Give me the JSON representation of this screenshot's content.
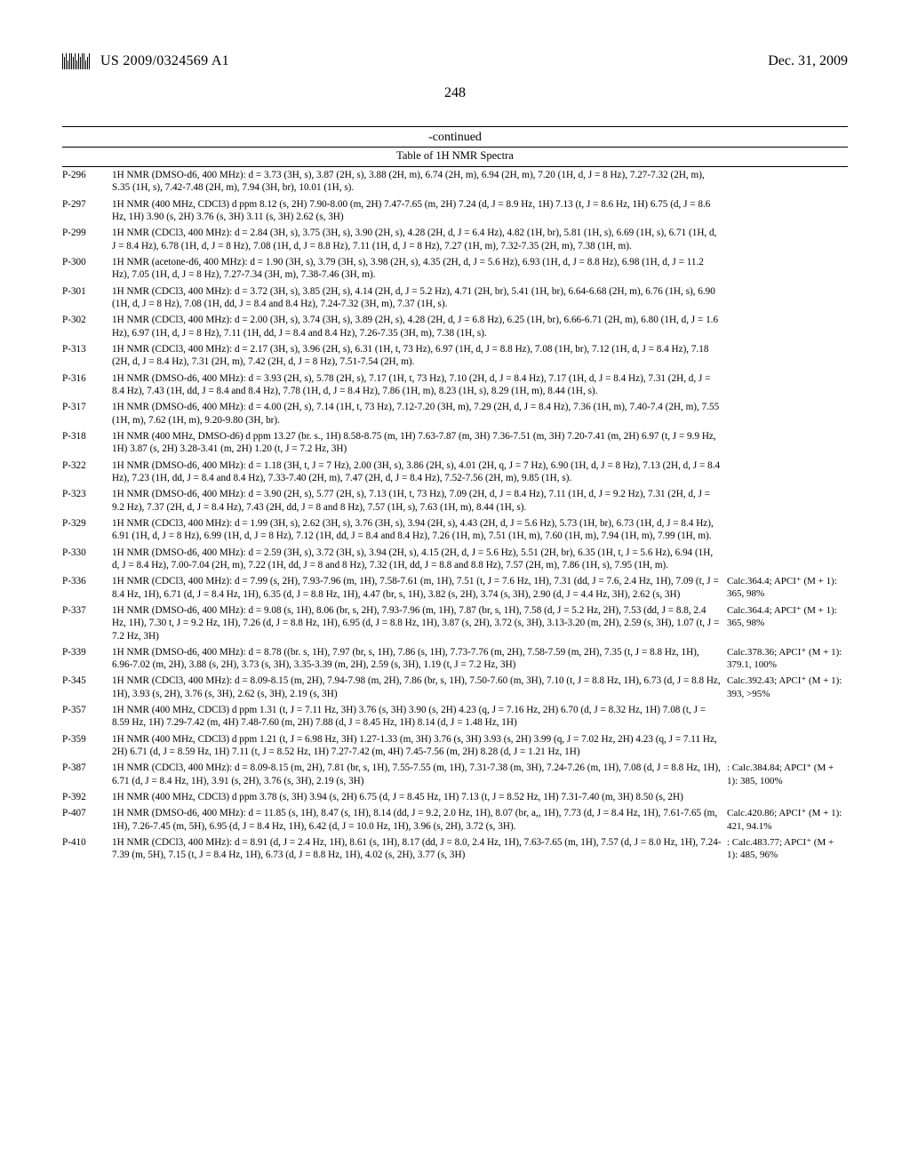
{
  "header": {
    "publication_id": "US 2009/0324569 A1",
    "date": "Dec. 31, 2009",
    "page_number": "248"
  },
  "table": {
    "continued_label": "-continued",
    "title": "Table of 1H NMR Spectra",
    "colors": {
      "text": "#000000",
      "background": "#ffffff",
      "rule": "#000000"
    },
    "font": {
      "family": "Times New Roman",
      "body_size_pt": 11.2,
      "header_size_pt": 16,
      "title_size_pt": 12.5
    },
    "rows": [
      {
        "id": "P-296",
        "nmr": "1H NMR (DMSO-d6, 400 MHz): d = 3.73 (3H, s), 3.87 (2H, s), 3.88 (2H, m), 6.74 (2H, m), 6.94 (2H, m), 7.20 (1H, d, J = 8 Hz), 7.27-7.32 (2H, m), S.35 (1H, s), 7.42-7.48 (2H, m), 7.94 (3H, br), 10.01 (1H, s).",
        "ms": ""
      },
      {
        "id": "P-297",
        "nmr": "1H NMR (400 MHz, CDCl3) d ppm 8.12 (s, 2H) 7.90-8.00 (m, 2H) 7.47-7.65 (m, 2H) 7.24 (d, J = 8.9 Hz, 1H) 7.13 (t, J = 8.6 Hz, 1H) 6.75 (d, J = 8.6 Hz, 1H) 3.90 (s, 2H) 3.76 (s, 3H) 3.11 (s, 3H) 2.62 (s, 3H)",
        "ms": ""
      },
      {
        "id": "P-299",
        "nmr": "1H NMR (CDCl3, 400 MHz): d = 2.84 (3H, s), 3.75 (3H, s), 3.90 (2H, s), 4.28 (2H, d, J = 6.4 Hz), 4.82 (1H, br), 5.81 (1H, s), 6.69 (1H, s), 6.71 (1H, d, J = 8.4 Hz), 6.78 (1H, d, J = 8 Hz), 7.08 (1H, d, J = 8.8 Hz), 7.11 (1H, d, J = 8 Hz), 7.27 (1H, m), 7.32-7.35 (2H, m), 7.38 (1H, m).",
        "ms": ""
      },
      {
        "id": "P-300",
        "nmr": "1H NMR (acetone-d6, 400 MHz): d = 1.90 (3H, s), 3.79 (3H, s), 3.98 (2H, s), 4.35 (2H, d, J = 5.6 Hz), 6.93 (1H, d, J = 8.8 Hz), 6.98 (1H, d, J = 11.2 Hz), 7.05 (1H, d, J = 8 Hz), 7.27-7.34 (3H, m), 7.38-7.46 (3H, m).",
        "ms": ""
      },
      {
        "id": "P-301",
        "nmr": "1H NMR (CDCl3, 400 MHz): d = 3.72 (3H, s), 3.85 (2H, s), 4.14 (2H, d, J = 5.2 Hz), 4.71 (2H, br), 5.41 (1H, br), 6.64-6.68 (2H, m), 6.76 (1H, s), 6.90 (1H, d, J = 8 Hz), 7.08 (1H, dd, J = 8.4 and 8.4 Hz), 7.24-7.32 (3H, m), 7.37 (1H, s).",
        "ms": ""
      },
      {
        "id": "P-302",
        "nmr": "1H NMR (CDCl3, 400 MHz): d = 2.00 (3H, s), 3.74 (3H, s), 3.89 (2H, s), 4.28 (2H, d, J = 6.8 Hz), 6.25 (1H, br), 6.66-6.71 (2H, m), 6.80 (1H, d, J = 1.6 Hz), 6.97 (1H, d, J = 8 Hz), 7.11 (1H, dd, J = 8.4 and 8.4 Hz), 7.26-7.35 (3H, m), 7.38 (1H, s).",
        "ms": ""
      },
      {
        "id": "P-313",
        "nmr": "1H NMR (CDCl3, 400 MHz): d = 2.17 (3H, s), 3.96 (2H, s), 6.31 (1H, t, 73 Hz), 6.97 (1H, d, J = 8.8 Hz), 7.08 (1H, br), 7.12 (1H, d, J = 8.4 Hz), 7.18 (2H, d, J = 8.4 Hz), 7.31 (2H, m), 7.42 (2H, d, J = 8 Hz), 7.51-7.54 (2H, m).",
        "ms": ""
      },
      {
        "id": "P-316",
        "nmr": "1H NMR (DMSO-d6, 400 MHz): d = 3.93 (2H, s), 5.78 (2H, s), 7.17 (1H, t, 73 Hz), 7.10 (2H, d, J = 8.4 Hz), 7.17 (1H, d, J = 8.4 Hz), 7.31 (2H, d, J = 8.4 Hz), 7.43 (1H, dd, J = 8.4 and 8.4 Hz), 7.78 (1H, d, J = 8.4 Hz), 7.86 (1H, m), 8.23 (1H, s), 8.29 (1H, m), 8.44 (1H, s).",
        "ms": ""
      },
      {
        "id": "P-317",
        "nmr": "1H NMR (DMSO-d6, 400 MHz): d = 4.00 (2H, s), 7.14 (1H, t, 73 Hz), 7.12-7.20 (3H, m), 7.29 (2H, d, J = 8.4 Hz), 7.36 (1H, m), 7.40-7.4 (2H, m), 7.55 (1H, m), 7.62 (1H, m), 9.20-9.80 (3H, br).",
        "ms": ""
      },
      {
        "id": "P-318",
        "nmr": "1H NMR (400 MHz, DMSO-d6) d ppm 13.27 (br. s., 1H) 8.58-8.75 (m, 1H) 7.63-7.87 (m, 3H) 7.36-7.51 (m, 3H) 7.20-7.41 (m, 2H) 6.97 (t, J = 9.9 Hz, 1H) 3.87 (s, 2H) 3.28-3.41 (m, 2H) 1.20 (t, J = 7.2 Hz, 3H)",
        "ms": ""
      },
      {
        "id": "P-322",
        "nmr": "1H NMR (DMSO-d6, 400 MHz): d = 1.18 (3H, t, J = 7 Hz), 2.00 (3H, s), 3.86 (2H, s), 4.01 (2H, q, J = 7 Hz), 6.90 (1H, d, J = 8 Hz), 7.13 (2H, d, J = 8.4 Hz), 7.23 (1H, dd, J = 8.4 and 8.4 Hz), 7.33-7.40 (2H, m), 7.47 (2H, d, J = 8.4 Hz), 7.52-7.56 (2H, m), 9.85 (1H, s).",
        "ms": ""
      },
      {
        "id": "P-323",
        "nmr": "1H NMR (DMSO-d6, 400 MHz): d = 3.90 (2H, s), 5.77 (2H, s), 7.13 (1H, t, 73 Hz), 7.09 (2H, d, J = 8.4 Hz), 7.11 (1H, d, J = 9.2 Hz), 7.31 (2H, d, J = 9.2 Hz), 7.37 (2H, d, J = 8.4 Hz), 7.43 (2H, dd, J = 8 and 8 Hz), 7.57 (1H, s), 7.63 (1H, m), 8.44 (1H, s).",
        "ms": ""
      },
      {
        "id": "P-329",
        "nmr": "1H NMR (CDCl3, 400 MHz): d = 1.99 (3H, s), 2.62 (3H, s), 3.76 (3H, s), 3.94 (2H, s), 4.43 (2H, d, J = 5.6 Hz), 5.73 (1H, br), 6.73 (1H, d, J = 8.4 Hz), 6.91 (1H, d, J = 8 Hz), 6.99 (1H, d, J = 8 Hz), 7.12 (1H, dd, J = 8.4 and 8.4 Hz), 7.26 (1H, m), 7.51 (1H, m), 7.60 (1H, m), 7.94 (1H, m), 7.99 (1H, m).",
        "ms": ""
      },
      {
        "id": "P-330",
        "nmr": "1H NMR (DMSO-d6, 400 MHz): d = 2.59 (3H, s), 3.72 (3H, s), 3.94 (2H, s), 4.15 (2H, d, J = 5.6 Hz), 5.51 (2H, br), 6.35 (1H, t, J = 5.6 Hz), 6.94 (1H, d, J = 8.4 Hz), 7.00-7.04 (2H, m), 7.22 (1H, dd, J = 8 and 8 Hz), 7.32 (1H, dd, J = 8.8 and 8.8 Hz), 7.57 (2H, m), 7.86 (1H, s), 7.95 (1H, m).",
        "ms": ""
      },
      {
        "id": "P-336",
        "nmr": "1H NMR (CDCl3, 400 MHz): d = 7.99 (s, 2H), 7.93-7.96 (m, 1H), 7.58-7.61 (m, 1H), 7.51 (t, J = 7.6 Hz, 1H), 7.31 (dd, J = 7.6, 2.4 Hz, 1H), 7.09 (t, J = 8.4 Hz, 1H), 6.71 (d, J = 8.4 Hz, 1H), 6.35 (d, J = 8.8 Hz, 1H), 4.47 (br, s, 1H), 3.82 (s, 2H), 3.74 (s, 3H), 2.90 (d, J = 4.4 Hz, 3H), 2.62 (s, 3H)",
        "ms": "Calc.364.4; APCI⁺ (M + 1): 365, 98%"
      },
      {
        "id": "P-337",
        "nmr": "1H NMR (DMSO-d6, 400 MHz): d = 9.08 (s, 1H), 8.06 (br, s, 2H), 7.93-7.96 (m, 1H), 7.87 (br, s, 1H), 7.58 (d, J = 5.2 Hz, 2H), 7.53 (dd, J = 8.8, 2.4 Hz, 1H), 7.30 t, J = 9.2 Hz, 1H), 7.26 (d, J = 8.8 Hz, 1H), 6.95 (d, J = 8.8 Hz, 1H), 3.87 (s, 2H), 3.72 (s, 3H), 3.13-3.20 (m, 2H), 2.59 (s, 3H), 1.07 (t, J = 7.2 Hz, 3H)",
        "ms": "Calc.364.4; APCI⁺ (M + 1): 365, 98%"
      },
      {
        "id": "P-339",
        "nmr": "1H NMR (DMSO-d6, 400 MHz): d = 8.78 ((br. s, 1H), 7.97 (br, s, 1H), 7.86 (s, 1H), 7.73-7.76 (m, 2H), 7.58-7.59 (m, 2H), 7.35 (t, J = 8.8 Hz, 1H), 6.96-7.02 (m, 2H), 3.88 (s, 2H), 3.73 (s, 3H), 3.35-3.39 (m, 2H), 2.59 (s, 3H), 1.19 (t, J = 7.2 Hz, 3H)",
        "ms": "Calc.378.36; APCI⁺ (M + 1): 379.1, 100%"
      },
      {
        "id": "P-345",
        "nmr": "1H NMR (CDCl3, 400 MHz): d = 8.09-8.15 (m, 2H), 7.94-7.98 (m, 2H), 7.86 (br, s, 1H), 7.50-7.60 (m, 3H), 7.10 (t, J = 8.8 Hz, 1H), 6.73 (d, J = 8.8 Hz, 1H), 3.93 (s, 2H), 3.76 (s, 3H), 2.62 (s, 3H), 2.19 (s, 3H)",
        "ms": "Calc.392.43; APCI⁺ (M + 1): 393, >95%"
      },
      {
        "id": "P-357",
        "nmr": "1H NMR (400 MHz, CDCl3) d ppm 1.31 (t, J = 7.11 Hz, 3H) 3.76 (s, 3H) 3.90 (s, 2H) 4.23 (q, J = 7.16 Hz, 2H) 6.70 (d, J = 8.32 Hz, 1H) 7.08 (t, J = 8.59 Hz, 1H) 7.29-7.42 (m, 4H) 7.48-7.60 (m, 2H) 7.88 (d, J = 8.45 Hz, 1H) 8.14 (d, J = 1.48 Hz, 1H)",
        "ms": ""
      },
      {
        "id": "P-359",
        "nmr": "1H NMR (400 MHz, CDCl3) d ppm 1.21 (t, J = 6.98 Hz, 3H) 1.27-1.33 (m, 3H) 3.76 (s, 3H) 3.93 (s, 2H) 3.99 (q, J = 7.02 Hz, 2H) 4.23 (q, J = 7.11 Hz, 2H) 6.71 (d, J = 8.59 Hz, 1H) 7.11 (t, J = 8.52 Hz, 1H) 7.27-7.42 (m, 4H) 7.45-7.56 (m, 2H) 8.28 (d, J = 1.21 Hz, 1H)",
        "ms": ""
      },
      {
        "id": "P-387",
        "nmr": "1H NMR (CDCl3, 400 MHz): d = 8.09-8.15 (m, 2H), 7.81 (br, s, 1H), 7.55-7.55 (m, 1H), 7.31-7.38 (m, 3H), 7.24-7.26 (m, 1H), 7.08 (d, J = 8.8 Hz, 1H), 6.71 (d, J = 8.4 Hz, 1H), 3.91 (s, 2H), 3.76 (s, 3H), 2.19 (s, 3H)",
        "ms": ": Calc.384.84; APCI⁺ (M + 1): 385, 100%"
      },
      {
        "id": "P-392",
        "nmr": "1H NMR (400 MHz, CDCl3) d ppm 3.78 (s, 3H) 3.94 (s, 2H) 6.75 (d, J = 8.45 Hz, 1H) 7.13 (t, J = 8.52 Hz, 1H) 7.31-7.40 (m, 3H) 8.50 (s, 2H)",
        "ms": ""
      },
      {
        "id": "P-407",
        "nmr": "1H NMR (DMSO-d6, 400 MHz): d = 11.85 (s, 1H), 8.47 (s, 1H), 8.14 (dd, J = 9.2, 2.0 Hz, 1H), 8.07 (br, a,, 1H), 7.73 (d, J = 8.4 Hz, 1H), 7.61-7.65 (m, 1H), 7.26-7.45 (m, 5H), 6.95 (d, J = 8.4 Hz, 1H), 6.42 (d, J = 10.0 Hz, 1H), 3.96 (s, 2H), 3.72 (s, 3H).",
        "ms": "Calc.420.86; APCI⁺ (M + 1): 421, 94.1%"
      },
      {
        "id": "P-410",
        "nmr": "1H NMR (CDCl3, 400 MHz): d = 8.91 (d, J = 2.4 Hz, 1H), 8.61 (s, 1H), 8.17 (dd, J = 8.0, 2.4 Hz, 1H), 7.63-7.65 (m, 1H), 7.57 (d, J = 8.0 Hz, 1H), 7.24-7.39 (m, 5H), 7.15 (t, J = 8.4 Hz, 1H), 6.73 (d, J = 8.8 Hz, 1H), 4.02 (s, 2H), 3.77 (s, 3H)",
        "ms": ": Calc.483.77; APCI⁺ (M + 1): 485, 96%"
      }
    ]
  }
}
